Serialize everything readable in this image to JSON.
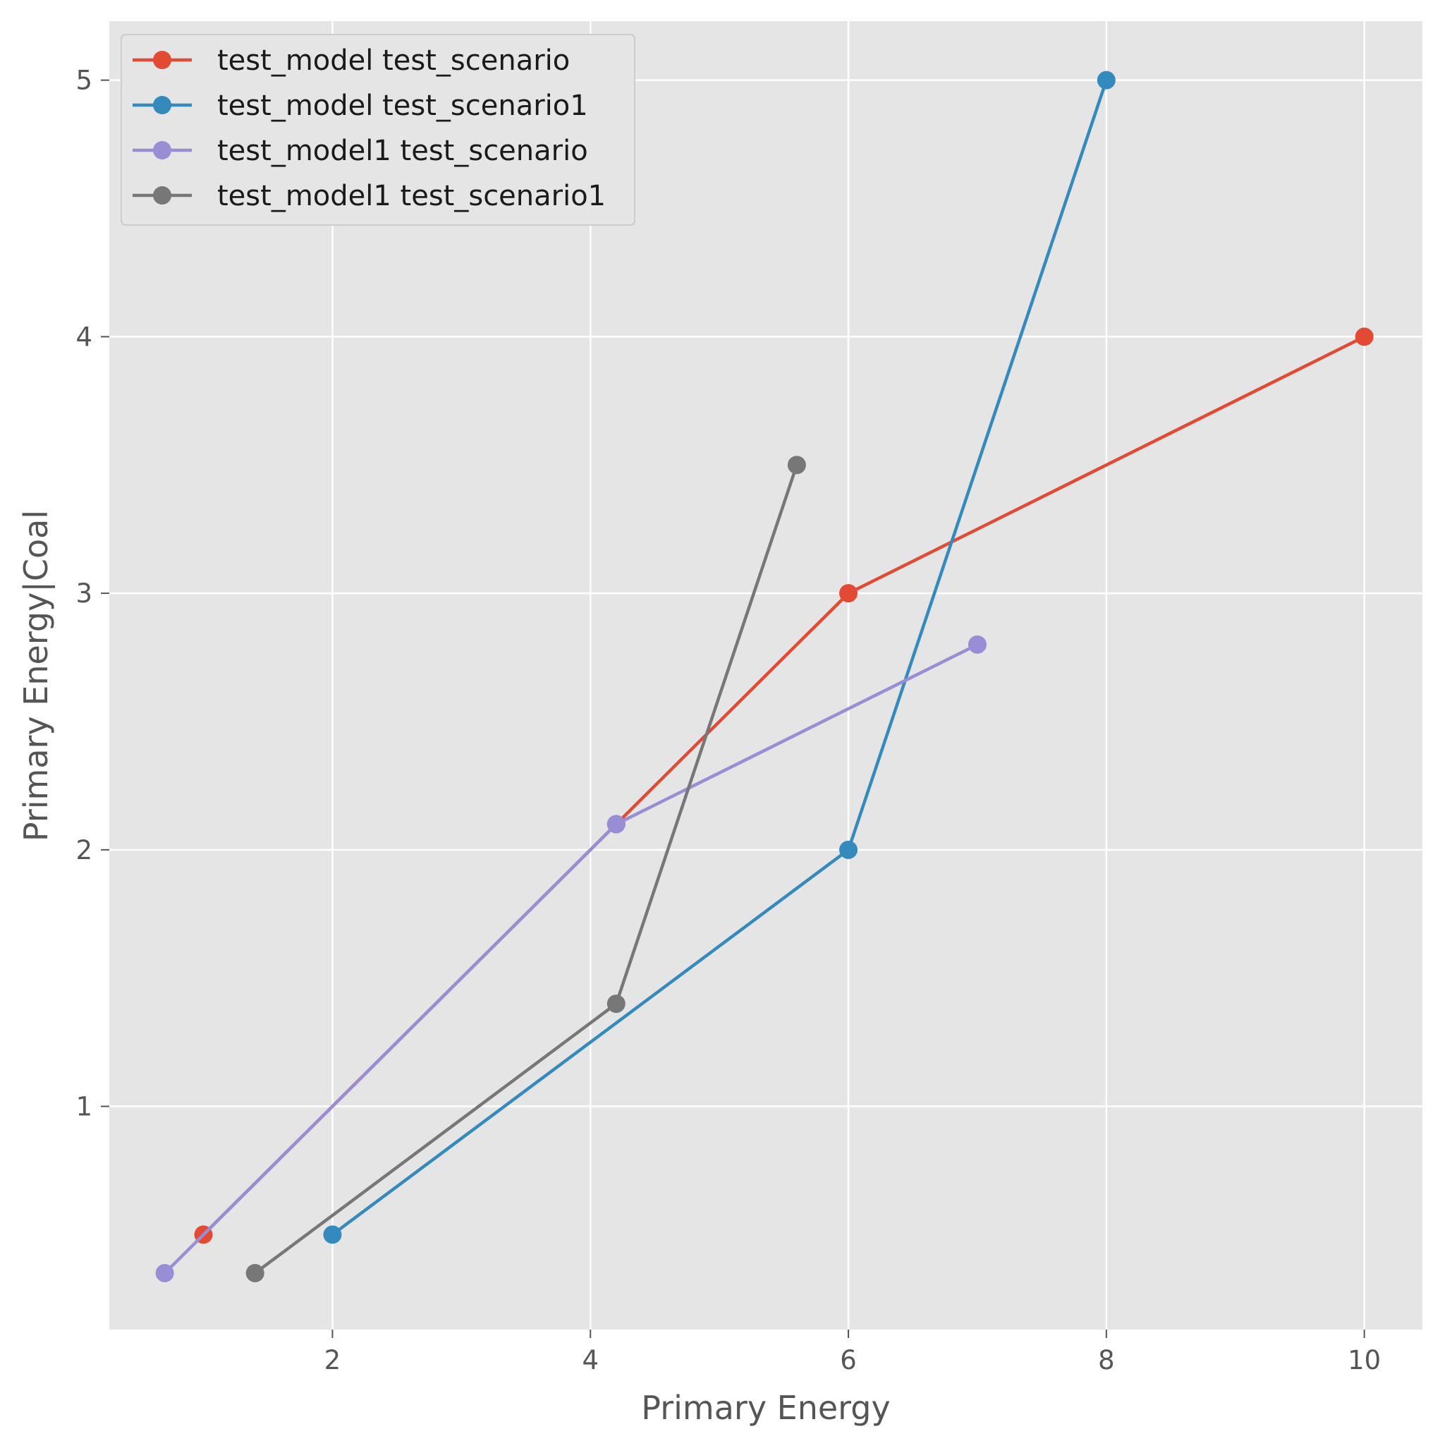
{
  "chart_data": {
    "type": "line",
    "title": "",
    "xlabel": "Primary Energy",
    "ylabel": "Primary Energy|Coal",
    "xlim": [
      0.27,
      10.45
    ],
    "ylim": [
      0.13,
      5.23
    ],
    "xticks": [
      2,
      4,
      6,
      8,
      10
    ],
    "yticks": [
      1,
      2,
      3,
      4,
      5
    ],
    "grid": true,
    "legend": "top-left",
    "series": [
      {
        "name": "test_model test_scenario",
        "color": "#E24A33",
        "points": [
          [
            1,
            0.5
          ],
          [
            4.2,
            2.1
          ],
          [
            6,
            3
          ],
          [
            10,
            4
          ]
        ]
      },
      {
        "name": "test_model test_scenario1",
        "color": "#348ABD",
        "points": [
          [
            2,
            0.5
          ],
          [
            6,
            2
          ],
          [
            8,
            5
          ]
        ]
      },
      {
        "name": "test_model1 test_scenario",
        "color": "#988ED5",
        "points": [
          [
            0.7,
            0.35
          ],
          [
            4.2,
            2.1
          ],
          [
            7,
            2.8
          ]
        ]
      },
      {
        "name": "test_model1 test_scenario1",
        "color": "#777777",
        "points": [
          [
            1.4,
            0.35
          ],
          [
            4.2,
            1.4
          ],
          [
            5.6,
            3.5
          ]
        ]
      }
    ]
  }
}
